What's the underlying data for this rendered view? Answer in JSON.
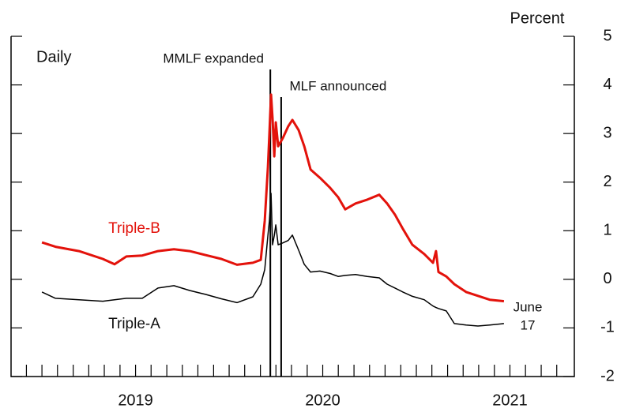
{
  "chart_data": {
    "type": "line",
    "title": "Daily",
    "y_axis_label": "Percent",
    "x": [
      2019.0,
      2019.072,
      2019.198,
      2019.325,
      2019.388,
      2019.451,
      2019.536,
      2019.62,
      2019.705,
      2019.789,
      2019.873,
      2019.958,
      2020.042,
      2020.127,
      2020.169,
      2020.19,
      2020.207,
      2020.215,
      2020.224,
      2020.232,
      2020.241,
      2020.249,
      2020.262,
      2020.287,
      2020.316,
      2020.338,
      2020.371,
      2020.401,
      2020.435,
      2020.485,
      2020.54,
      2020.582,
      2020.62,
      2020.675,
      2020.738,
      2020.802,
      2020.844,
      2020.886,
      2020.928,
      2020.979,
      2021.042,
      2021.089,
      2021.105,
      2021.118,
      2021.16,
      2021.203,
      2021.266,
      2021.329,
      2021.392,
      2021.468
    ],
    "series": [
      {
        "name": "Triple-B",
        "color": "#e3120b",
        "width": 3,
        "values": [
          0.76,
          0.67,
          0.58,
          0.42,
          0.31,
          0.47,
          0.49,
          0.58,
          0.62,
          0.58,
          0.5,
          0.42,
          0.3,
          0.34,
          0.4,
          1.2,
          2.3,
          2.99,
          3.8,
          3.31,
          2.53,
          3.23,
          2.74,
          2.91,
          3.15,
          3.28,
          3.07,
          2.74,
          2.26,
          2.09,
          1.88,
          1.69,
          1.44,
          1.56,
          1.64,
          1.74,
          1.56,
          1.33,
          1.04,
          0.71,
          0.52,
          0.34,
          0.58,
          0.15,
          0.06,
          -0.1,
          -0.26,
          -0.34,
          -0.42,
          -0.45
        ]
      },
      {
        "name": "Triple-A",
        "color": "#000000",
        "width": 1.5,
        "values": [
          -0.26,
          -0.39,
          -0.42,
          -0.45,
          -0.42,
          -0.39,
          -0.39,
          -0.18,
          -0.13,
          -0.23,
          -0.31,
          -0.4,
          -0.48,
          -0.36,
          -0.1,
          0.2,
          0.9,
          1.2,
          1.77,
          0.71,
          0.9,
          1.12,
          0.71,
          0.75,
          0.8,
          0.91,
          0.6,
          0.31,
          0.15,
          0.17,
          0.12,
          0.06,
          0.08,
          0.1,
          0.06,
          0.03,
          -0.1,
          -0.18,
          -0.26,
          -0.35,
          -0.42,
          -0.55,
          -0.58,
          -0.6,
          -0.65,
          -0.91,
          -0.94,
          -0.96,
          -0.94,
          -0.91
        ]
      }
    ],
    "annotations": [
      {
        "text": "MMLF expanded",
        "x": 2020.22
      },
      {
        "text": "MLF announced",
        "x": 2020.278
      }
    ],
    "end_label": [
      "June",
      "17"
    ],
    "xlim": [
      2018.835,
      2021.844
    ],
    "xticks": [
      {
        "value": 2019.5,
        "label": "2019"
      },
      {
        "value": 2020.5,
        "label": "2020"
      },
      {
        "value": 2021.5,
        "label": "2021"
      }
    ],
    "xminorticks": [
      2018.917,
      2019.0,
      2019.083,
      2019.167,
      2019.25,
      2019.333,
      2019.417,
      2019.5,
      2019.583,
      2019.667,
      2019.75,
      2019.833,
      2019.917,
      2020.0,
      2020.083,
      2020.167,
      2020.25,
      2020.333,
      2020.417,
      2020.5,
      2020.583,
      2020.667,
      2020.75,
      2020.833,
      2020.917,
      2021.0,
      2021.083,
      2021.167,
      2021.25,
      2021.333,
      2021.417,
      2021.5,
      2021.583,
      2021.667,
      2021.75
    ],
    "ylim": [
      -2,
      5
    ],
    "yticks": [
      -2,
      -1,
      0,
      1,
      2,
      3,
      4,
      5
    ],
    "y_axis_side": "right",
    "grid": false
  }
}
